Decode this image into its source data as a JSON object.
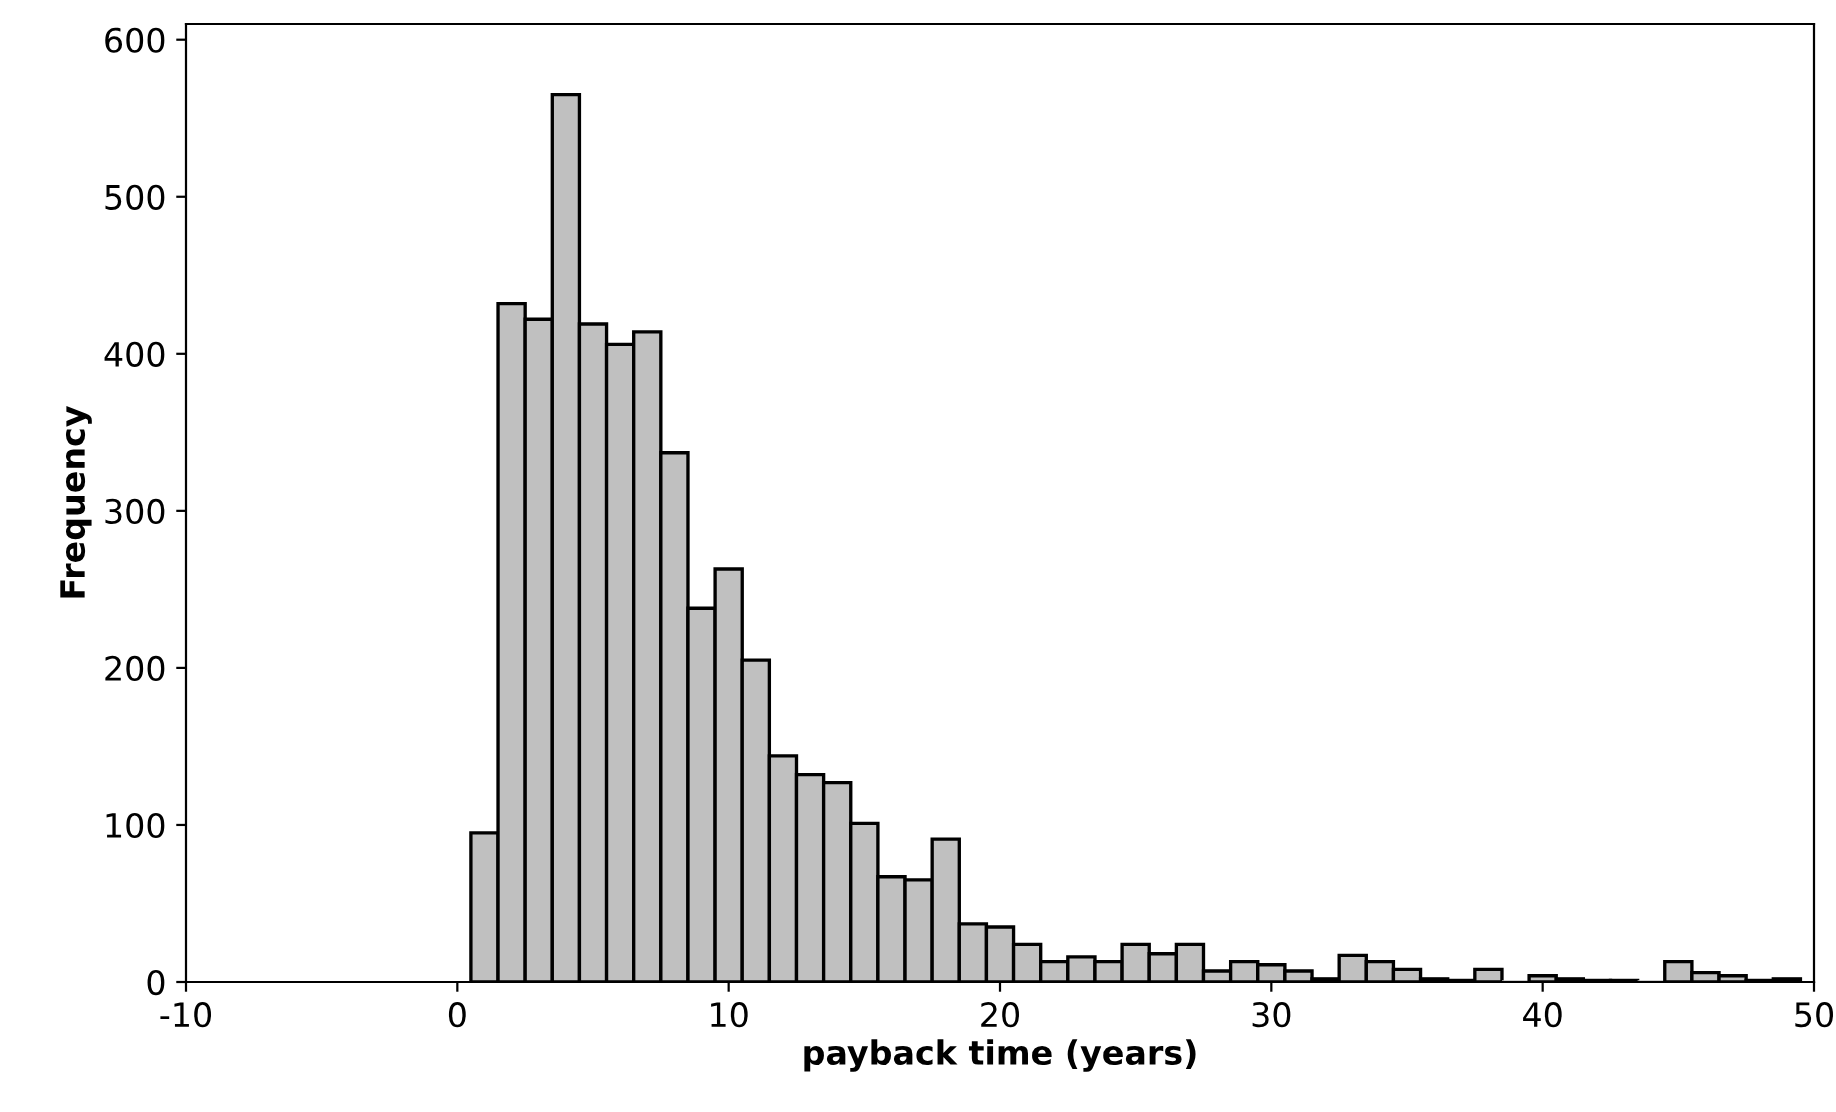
{
  "chart_data": {
    "type": "histogram",
    "xlabel": "payback time (years)",
    "ylabel": "Frequency",
    "color": "#c0c0c0",
    "bins": [
      0.5,
      1.5,
      2.5,
      3.5,
      4.5,
      5.5,
      6.5,
      7.5,
      8.5,
      9.5,
      10.5,
      11.5,
      12.5,
      13.5,
      14.5,
      15.5,
      16.5,
      17.5,
      18.5,
      19.5,
      20.5,
      21.5,
      22.5,
      23.5,
      24.5,
      25.5,
      26.5,
      27.5,
      28.5,
      29.5,
      30.5,
      31.5,
      32.5,
      33.5,
      34.5,
      35.5,
      36.5,
      37.5,
      38.5,
      39.5,
      40.5,
      41.5,
      42.5,
      43.5,
      44.5,
      45.5,
      46.5,
      47.5,
      48.5,
      49.5
    ],
    "values": [
      95,
      432,
      422,
      565,
      419,
      406,
      414,
      337,
      238,
      263,
      205,
      144,
      132,
      127,
      101,
      67,
      65,
      91,
      37,
      35,
      24,
      13,
      16,
      13,
      24,
      18,
      24,
      7,
      13,
      11,
      7,
      2,
      17,
      13,
      8,
      2,
      1,
      8,
      0,
      4,
      2,
      1,
      1,
      0,
      13,
      6,
      4,
      1,
      2
    ],
    "xlim": [
      -10,
      50
    ],
    "xticks": [
      -10,
      0,
      10,
      20,
      30,
      40,
      50
    ],
    "ylim": [
      0,
      610
    ],
    "yticks": [
      0,
      100,
      200,
      300,
      400,
      500,
      600
    ],
    "grid": false
  }
}
